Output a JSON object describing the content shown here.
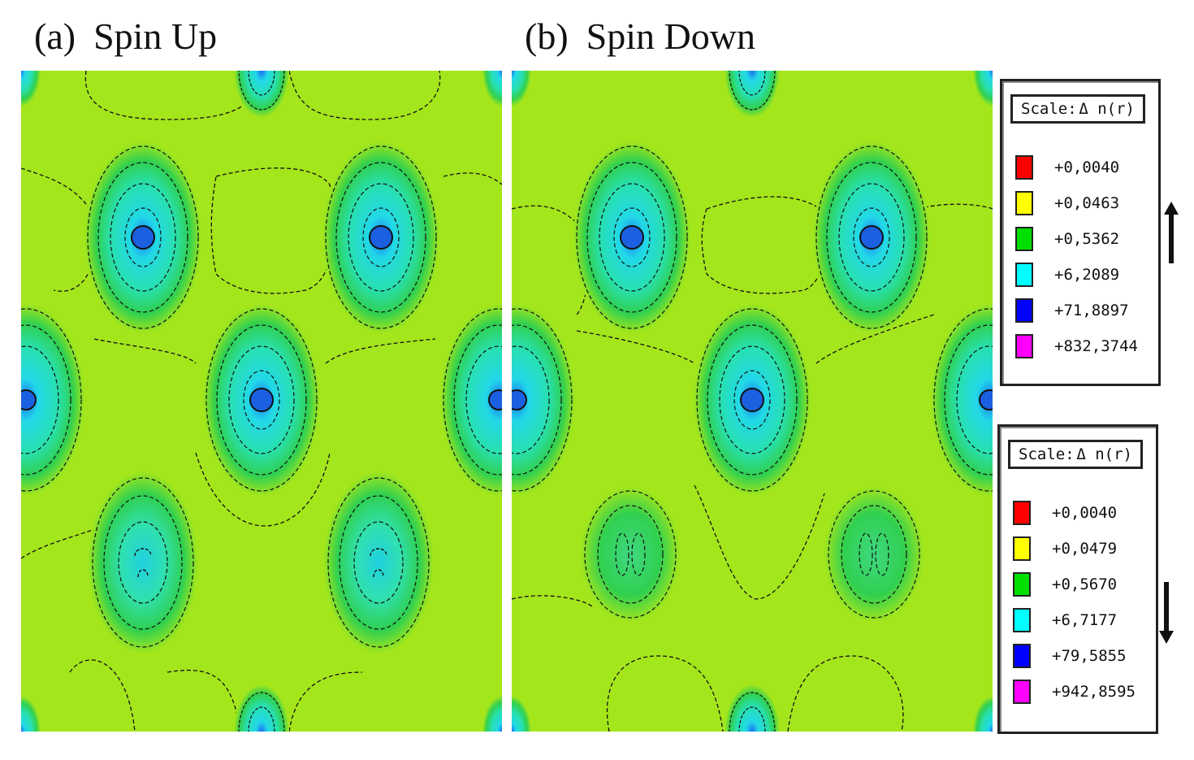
{
  "panels": [
    {
      "label": "(a)",
      "title": "Spin Up"
    },
    {
      "label": "(b)",
      "title": "Spin Down"
    }
  ],
  "scales": [
    {
      "header_label": "Scale:",
      "quantity": "Δ n(r)",
      "direction": "up",
      "direction_icon": "arrow-up-icon",
      "entries": [
        {
          "value": "+0,0040",
          "color": "#ff0000"
        },
        {
          "value": "+0,0463",
          "color": "#ffff00"
        },
        {
          "value": "+0,5362",
          "color": "#00e000"
        },
        {
          "value": "+6,2089",
          "color": "#00ffff"
        },
        {
          "value": "+71,8897",
          "color": "#0000ff"
        },
        {
          "value": "+832,3744",
          "color": "#ff00ff"
        }
      ]
    },
    {
      "header_label": "Scale:",
      "quantity": "Δ n(r)",
      "direction": "down",
      "direction_icon": "arrow-down-icon",
      "entries": [
        {
          "value": "+0,0040",
          "color": "#ff0000"
        },
        {
          "value": "+0,0479",
          "color": "#ffff00"
        },
        {
          "value": "+0,5670",
          "color": "#00e000"
        },
        {
          "value": "+6,7177",
          "color": "#00ffff"
        },
        {
          "value": "+79,5855",
          "color": "#0000ff"
        },
        {
          "value": "+942,8595",
          "color": "#ff00ff"
        }
      ]
    }
  ],
  "colors": {
    "background": "#a4e61c",
    "contour": "#111111"
  }
}
